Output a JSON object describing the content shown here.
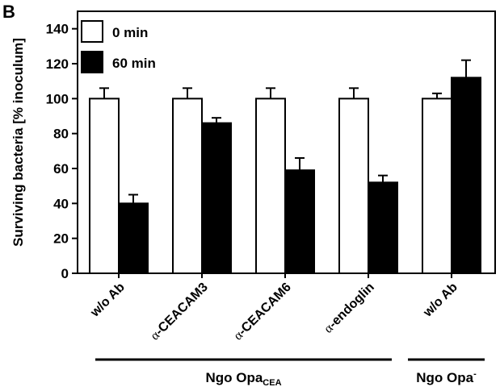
{
  "panel_letter": "B",
  "chart_data": {
    "type": "bar",
    "ylabel": "Surviving bacteria [% inoculum]",
    "ylim": [
      0,
      150
    ],
    "yticks": [
      0,
      20,
      40,
      60,
      80,
      100,
      120,
      140
    ],
    "categories": [
      {
        "prefix": "",
        "label": "w/o Ab"
      },
      {
        "prefix": "α",
        "label": "-CEACAM3"
      },
      {
        "prefix": "α",
        "label": "-CEACAM6"
      },
      {
        "prefix": "α",
        "label": "-endoglin"
      },
      {
        "prefix": "",
        "label": "w/o Ab"
      }
    ],
    "series": [
      {
        "name": "0 min",
        "color": "#ffffff",
        "values": [
          100,
          100,
          100,
          100,
          100
        ],
        "errors": [
          6,
          6,
          6,
          6,
          3
        ]
      },
      {
        "name": "60 min",
        "color": "#000000",
        "values": [
          40,
          86,
          59,
          52,
          112
        ],
        "errors": [
          5,
          3,
          7,
          4,
          10
        ]
      }
    ],
    "legend_position": "top-left",
    "groups": [
      {
        "label": "Ngo Opa",
        "subscript": "CEA",
        "superscript": "",
        "categories": [
          0,
          1,
          2,
          3
        ]
      },
      {
        "label": "Ngo Opa",
        "subscript": "",
        "superscript": "-",
        "categories": [
          4
        ]
      }
    ]
  }
}
